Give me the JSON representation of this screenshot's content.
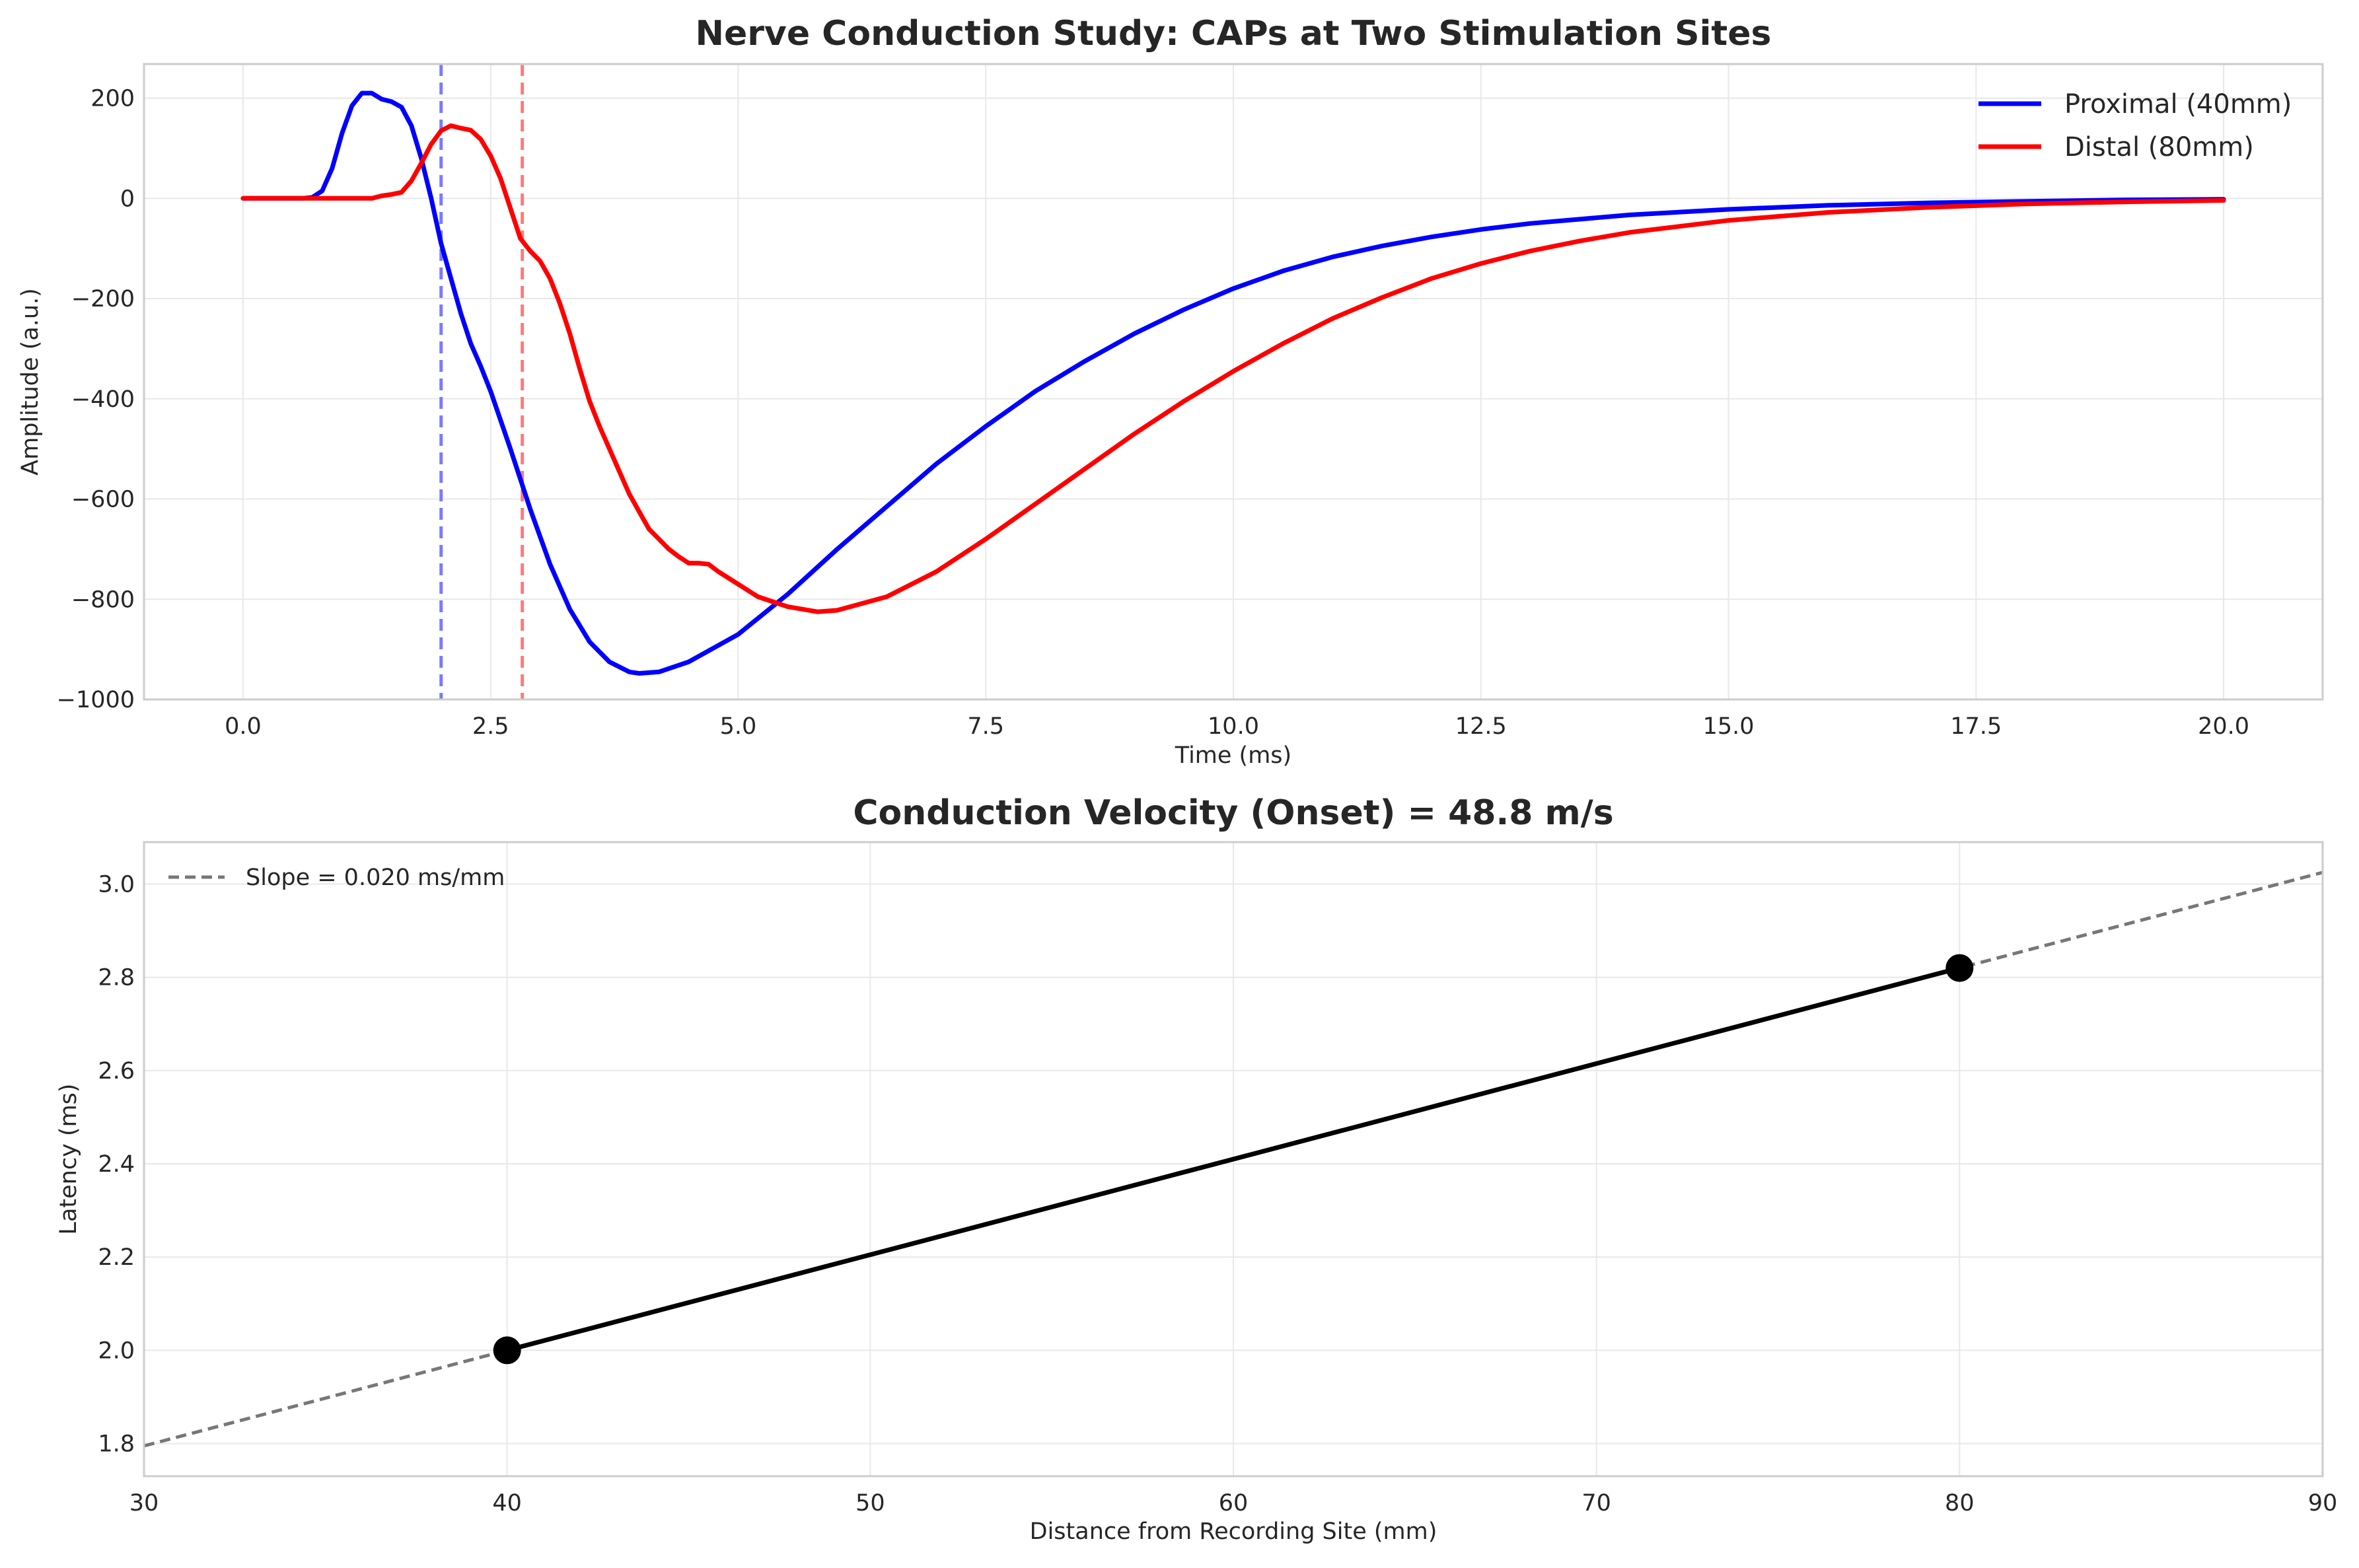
{
  "chart_data": [
    {
      "type": "line",
      "title": "Nerve Conduction Study: CAPs at Two Stimulation Sites",
      "xlabel": "Time (ms)",
      "ylabel": "Amplitude (a.u.)",
      "xlim": [
        -1.0,
        21.0
      ],
      "ylim": [
        -1000,
        268
      ],
      "xticks": [
        0.0,
        2.5,
        5.0,
        7.5,
        10.0,
        12.5,
        15.0,
        17.5,
        20.0
      ],
      "xtick_labels": [
        "0.0",
        "2.5",
        "5.0",
        "7.5",
        "10.0",
        "12.5",
        "15.0",
        "17.5",
        "20.0"
      ],
      "yticks": [
        200,
        0,
        -200,
        -400,
        -600,
        -800,
        -1000
      ],
      "ytick_labels": [
        "200",
        "0",
        "−200",
        "−400",
        "−600",
        "−800",
        "−1000"
      ],
      "grid": true,
      "legend_position": "top-right",
      "series": [
        {
          "name": "Proximal (40mm)",
          "color": "#0000ff",
          "points": [
            [
              0,
              0
            ],
            [
              0.6,
              0
            ],
            [
              0.7,
              2
            ],
            [
              0.8,
              15
            ],
            [
              0.9,
              60
            ],
            [
              1.0,
              130
            ],
            [
              1.1,
              185
            ],
            [
              1.2,
              210
            ],
            [
              1.3,
              210
            ],
            [
              1.4,
              198
            ],
            [
              1.5,
              193
            ],
            [
              1.6,
              182
            ],
            [
              1.7,
              145
            ],
            [
              1.8,
              80
            ],
            [
              1.9,
              0
            ],
            [
              2.0,
              -90
            ],
            [
              2.1,
              -160
            ],
            [
              2.2,
              -230
            ],
            [
              2.3,
              -290
            ],
            [
              2.4,
              -335
            ],
            [
              2.5,
              -385
            ],
            [
              2.7,
              -500
            ],
            [
              2.9,
              -620
            ],
            [
              3.1,
              -730
            ],
            [
              3.3,
              -820
            ],
            [
              3.5,
              -885
            ],
            [
              3.7,
              -925
            ],
            [
              3.9,
              -945
            ],
            [
              4.0,
              -948
            ],
            [
              4.2,
              -945
            ],
            [
              4.5,
              -925
            ],
            [
              5.0,
              -870
            ],
            [
              5.5,
              -790
            ],
            [
              6.0,
              -700
            ],
            [
              6.5,
              -615
            ],
            [
              7.0,
              -530
            ],
            [
              7.5,
              -455
            ],
            [
              8.0,
              -385
            ],
            [
              8.5,
              -325
            ],
            [
              9.0,
              -270
            ],
            [
              9.5,
              -222
            ],
            [
              10.0,
              -180
            ],
            [
              10.5,
              -145
            ],
            [
              11.0,
              -117
            ],
            [
              11.5,
              -95
            ],
            [
              12.0,
              -77
            ],
            [
              12.5,
              -62
            ],
            [
              13.0,
              -50
            ],
            [
              14.0,
              -33
            ],
            [
              15.0,
              -22
            ],
            [
              16.0,
              -14
            ],
            [
              17.0,
              -9
            ],
            [
              18.0,
              -6
            ],
            [
              19.0,
              -3
            ],
            [
              20.0,
              -2
            ]
          ]
        },
        {
          "name": "Distal (80mm)",
          "color": "#ff0000",
          "points": [
            [
              0,
              0
            ],
            [
              1.3,
              0
            ],
            [
              1.4,
              5
            ],
            [
              1.5,
              8
            ],
            [
              1.6,
              12
            ],
            [
              1.7,
              35
            ],
            [
              1.8,
              70
            ],
            [
              1.9,
              108
            ],
            [
              2.0,
              135
            ],
            [
              2.1,
              145
            ],
            [
              2.2,
              140
            ],
            [
              2.3,
              136
            ],
            [
              2.4,
              118
            ],
            [
              2.5,
              85
            ],
            [
              2.6,
              40
            ],
            [
              2.7,
              -20
            ],
            [
              2.8,
              -80
            ],
            [
              2.9,
              -105
            ],
            [
              3.0,
              -125
            ],
            [
              3.1,
              -160
            ],
            [
              3.2,
              -210
            ],
            [
              3.3,
              -270
            ],
            [
              3.4,
              -340
            ],
            [
              3.5,
              -405
            ],
            [
              3.6,
              -455
            ],
            [
              3.7,
              -500
            ],
            [
              3.8,
              -545
            ],
            [
              3.9,
              -590
            ],
            [
              4.0,
              -625
            ],
            [
              4.1,
              -660
            ],
            [
              4.2,
              -680
            ],
            [
              4.3,
              -700
            ],
            [
              4.4,
              -715
            ],
            [
              4.5,
              -728
            ],
            [
              4.6,
              -728
            ],
            [
              4.7,
              -730
            ],
            [
              4.8,
              -745
            ],
            [
              5.0,
              -770
            ],
            [
              5.2,
              -795
            ],
            [
              5.5,
              -815
            ],
            [
              5.8,
              -825
            ],
            [
              6.0,
              -822
            ],
            [
              6.5,
              -795
            ],
            [
              7.0,
              -745
            ],
            [
              7.5,
              -680
            ],
            [
              8.0,
              -610
            ],
            [
              8.5,
              -540
            ],
            [
              9.0,
              -470
            ],
            [
              9.5,
              -405
            ],
            [
              10.0,
              -345
            ],
            [
              10.5,
              -290
            ],
            [
              11.0,
              -240
            ],
            [
              11.5,
              -198
            ],
            [
              12.0,
              -160
            ],
            [
              12.5,
              -130
            ],
            [
              13.0,
              -105
            ],
            [
              13.5,
              -85
            ],
            [
              14.0,
              -68
            ],
            [
              15.0,
              -44
            ],
            [
              16.0,
              -28
            ],
            [
              17.0,
              -18
            ],
            [
              18.0,
              -11
            ],
            [
              19.0,
              -7
            ],
            [
              20.0,
              -4
            ]
          ]
        }
      ],
      "vlines": [
        {
          "x": 2.0,
          "color": "#7a7aff",
          "style": "dashed"
        },
        {
          "x": 2.82,
          "color": "#ff7a7a",
          "style": "dashed"
        }
      ]
    },
    {
      "type": "line",
      "title": "Conduction Velocity (Onset) = 48.8 m/s",
      "xlabel": "Distance from Recording Site (mm)",
      "ylabel": "Latency (ms)",
      "xlim": [
        30,
        90
      ],
      "ylim": [
        1.73,
        3.09
      ],
      "xticks": [
        30,
        40,
        50,
        60,
        70,
        80,
        90
      ],
      "xtick_labels": [
        "30",
        "40",
        "50",
        "60",
        "70",
        "80",
        "90"
      ],
      "yticks": [
        1.8,
        2.0,
        2.2,
        2.4,
        2.6,
        2.8,
        3.0
      ],
      "ytick_labels": [
        "1.8",
        "2.0",
        "2.2",
        "2.4",
        "2.6",
        "2.8",
        "3.0"
      ],
      "grid": true,
      "legend_position": "top-left",
      "points": [
        [
          40,
          2.0
        ],
        [
          80,
          2.82
        ]
      ],
      "point_color": "#000000",
      "fit": {
        "name": "Slope = 0.020 ms/mm",
        "color": "#777777",
        "style": "dashed",
        "from": [
          30,
          1.795
        ],
        "to": [
          90,
          3.025
        ]
      }
    }
  ]
}
